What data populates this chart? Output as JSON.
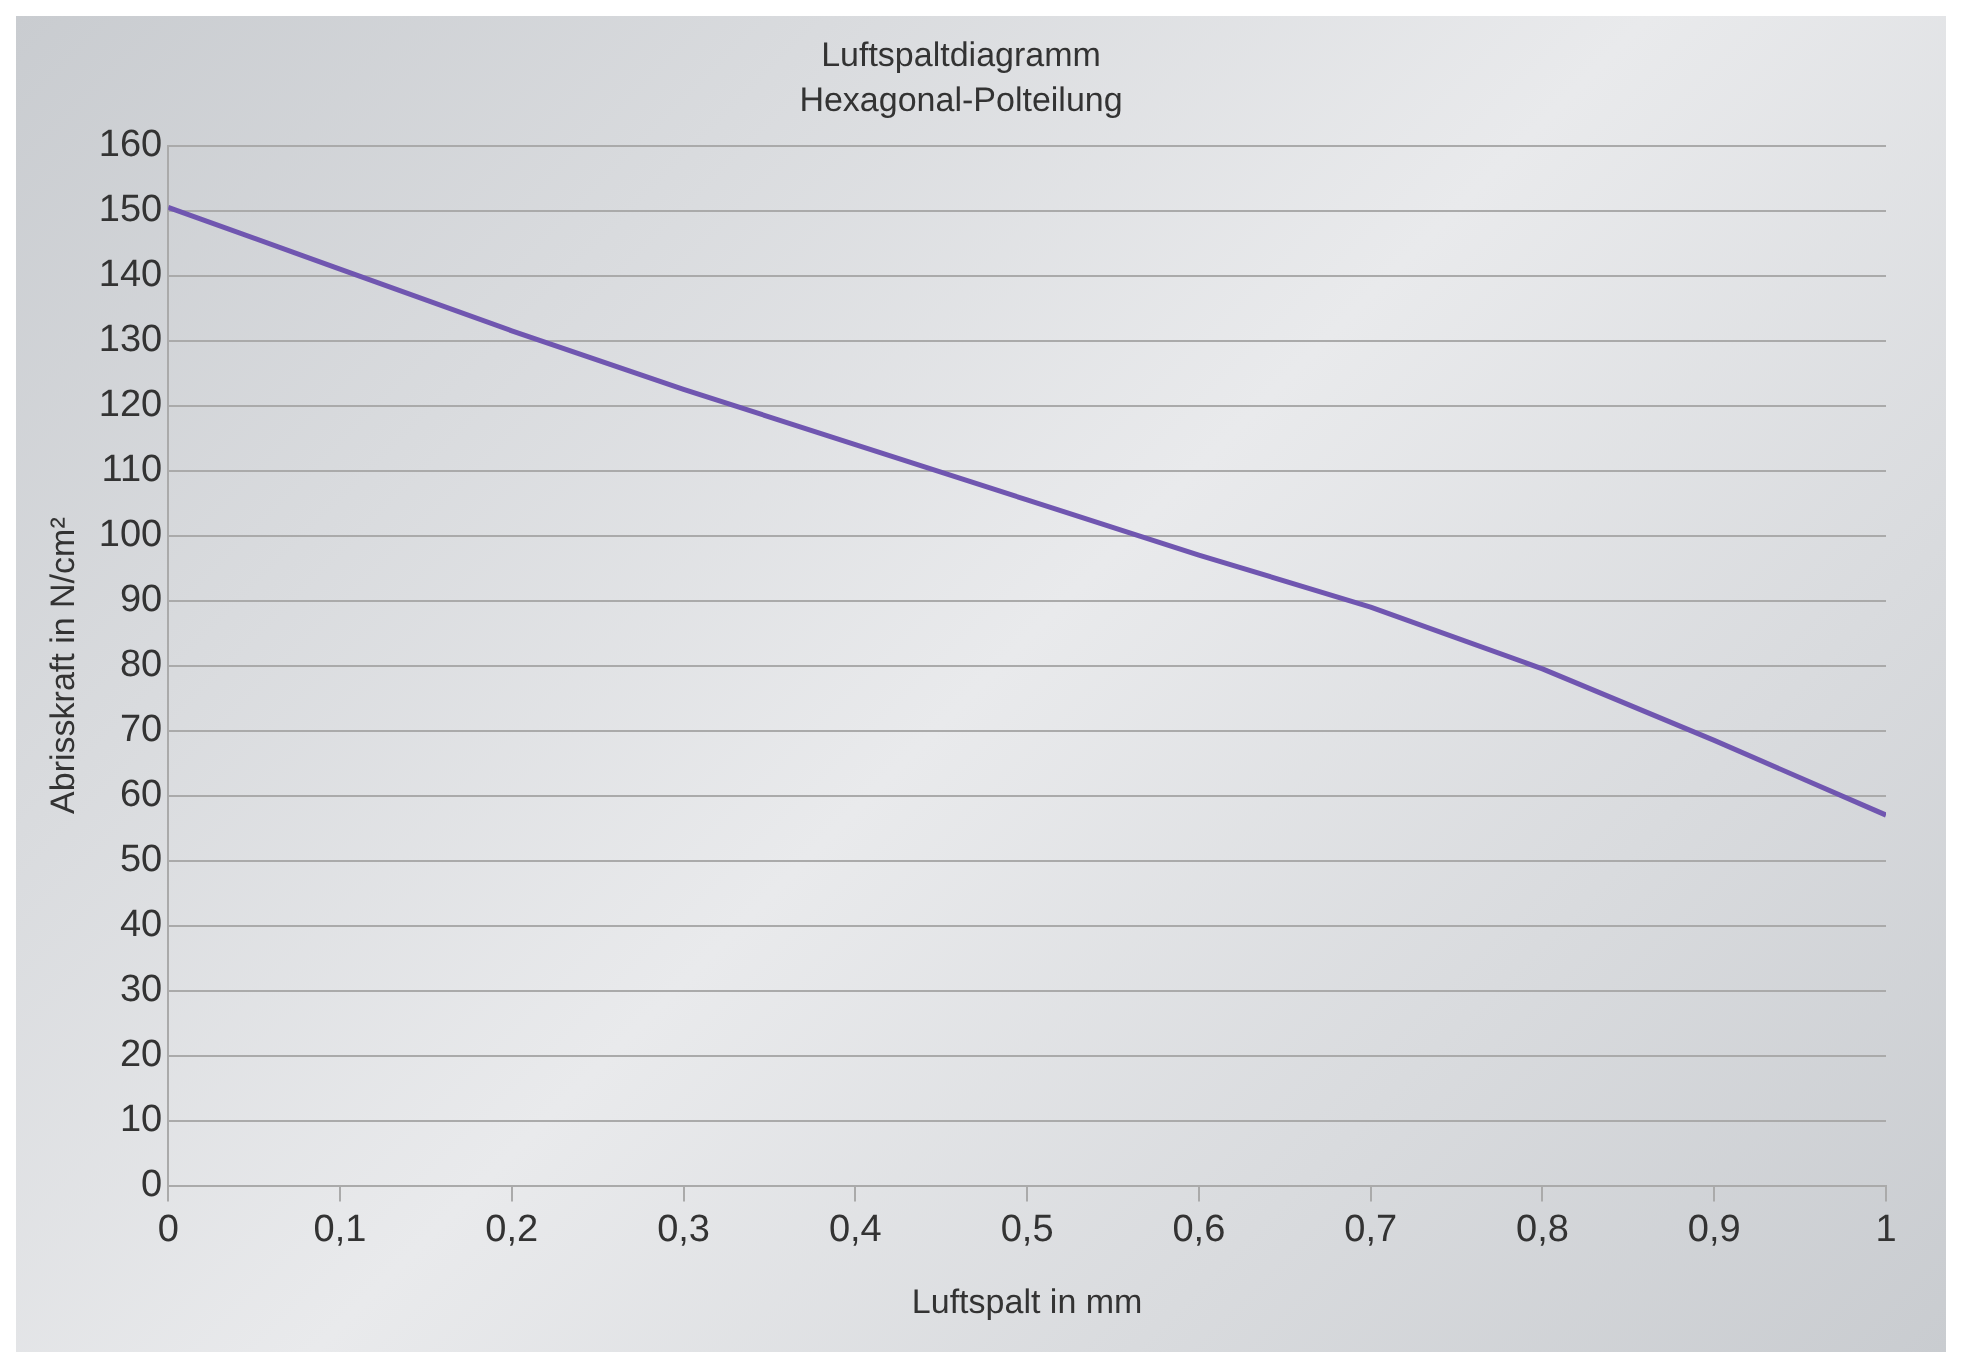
{
  "chart_data": {
    "type": "line",
    "title": "Luftspaltdiagramm",
    "subtitle": "Hexagonal-Polteilung",
    "xlabel": "Luftspalt in mm",
    "ylabel": "Abrisskraft in N/cm²",
    "x": [
      0,
      0.1,
      0.2,
      0.3,
      0.4,
      0.5,
      0.6,
      0.7,
      0.8,
      0.9,
      1
    ],
    "series": [
      {
        "color": "#7056b0",
        "values": [
          150.5,
          141,
          131.5,
          122.5,
          114,
          105.5,
          97,
          89,
          79.5,
          68.5,
          57
        ]
      }
    ],
    "xlim": [
      0,
      1
    ],
    "xticks": [
      0,
      {
        "value": 0.1,
        "label": "0,1"
      },
      {
        "value": 0.2,
        "label": "0,2"
      },
      {
        "value": 0.3,
        "label": "0,3"
      },
      {
        "value": 0.4,
        "label": "0,4"
      },
      {
        "value": 0.5,
        "label": "0,5"
      },
      {
        "value": 0.6,
        "label": "0,6"
      },
      {
        "value": 0.7,
        "label": "0,7"
      },
      {
        "value": 0.8,
        "label": "0,8"
      },
      {
        "value": 0.9,
        "label": "0,9"
      },
      1
    ],
    "ylim": [
      0,
      160
    ],
    "yticks": [
      0,
      10,
      20,
      30,
      40,
      50,
      60,
      70,
      80,
      90,
      100,
      110,
      120,
      130,
      140,
      150,
      160
    ],
    "grid": "y",
    "marker": "none",
    "line_style": "solid",
    "legend": false
  }
}
